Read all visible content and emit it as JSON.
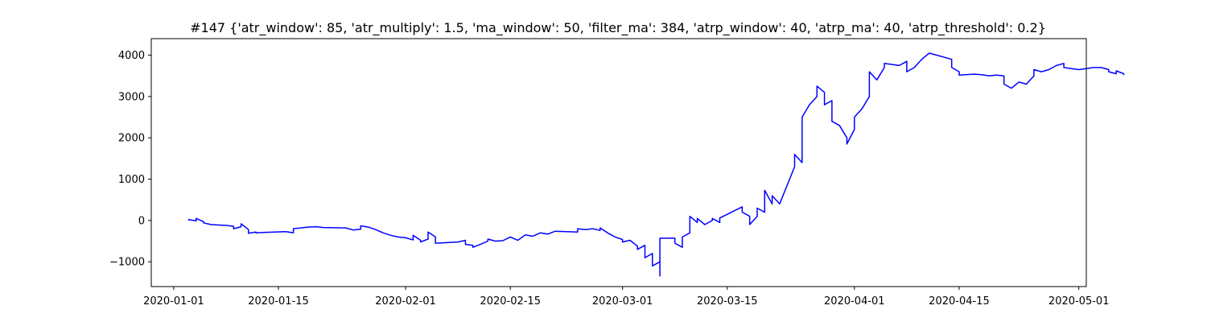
{
  "chart_data": {
    "type": "line",
    "title": "#147 {'atr_window': 85, 'atr_multiply': 1.5, 'ma_window': 50, 'filter_ma': 384, 'atrp_window': 40, 'atrp_ma': 40, 'atrp_threshold': 0.2}",
    "xlabel": "",
    "ylabel": "",
    "xlim": [
      "2019-12-29",
      "2020-05-02"
    ],
    "ylim": [
      -1600,
      4400
    ],
    "grid": false,
    "line_color": "#0000ff",
    "x_ticks": [
      "2020-01-01",
      "2020-01-15",
      "2020-02-01",
      "2020-02-15",
      "2020-03-01",
      "2020-03-15",
      "2020-04-01",
      "2020-04-15",
      "2020-05-01"
    ],
    "y_ticks": [
      -1000,
      0,
      1000,
      2000,
      3000,
      4000
    ],
    "series": [
      {
        "points": [
          [
            "2020-01-03",
            0
          ],
          [
            "2020-01-03",
            20
          ],
          [
            "2020-01-04",
            -10
          ],
          [
            "2020-01-04",
            50
          ],
          [
            "2020-01-05",
            -30
          ],
          [
            "2020-01-05",
            -60
          ],
          [
            "2020-01-06",
            -100
          ],
          [
            "2020-01-08",
            -120
          ],
          [
            "2020-01-09",
            -140
          ],
          [
            "2020-01-09",
            -200
          ],
          [
            "2020-01-10",
            -150
          ],
          [
            "2020-01-10",
            -80
          ],
          [
            "2020-01-11",
            -220
          ],
          [
            "2020-01-11",
            -310
          ],
          [
            "2020-01-12",
            -280
          ],
          [
            "2020-01-12",
            -300
          ],
          [
            "2020-01-13",
            -290
          ],
          [
            "2020-01-16",
            -270
          ],
          [
            "2020-01-17",
            -300
          ],
          [
            "2020-01-17",
            -200
          ],
          [
            "2020-01-18",
            -180
          ],
          [
            "2020-01-19",
            -160
          ],
          [
            "2020-01-20",
            -150
          ],
          [
            "2020-01-21",
            -170
          ],
          [
            "2020-01-24",
            -180
          ],
          [
            "2020-01-25",
            -230
          ],
          [
            "2020-01-26",
            -210
          ],
          [
            "2020-01-26",
            -130
          ],
          [
            "2020-01-27",
            -160
          ],
          [
            "2020-01-28",
            -220
          ],
          [
            "2020-01-29",
            -300
          ],
          [
            "2020-01-30",
            -360
          ],
          [
            "2020-01-31",
            -400
          ],
          [
            "2020-02-01",
            -420
          ],
          [
            "2020-02-02",
            -470
          ],
          [
            "2020-02-02",
            -360
          ],
          [
            "2020-02-03",
            -480
          ],
          [
            "2020-02-03",
            -520
          ],
          [
            "2020-02-04",
            -450
          ],
          [
            "2020-02-04",
            -280
          ],
          [
            "2020-02-05",
            -400
          ],
          [
            "2020-02-05",
            -550
          ],
          [
            "2020-02-08",
            -520
          ],
          [
            "2020-02-09",
            -480
          ],
          [
            "2020-02-09",
            -580
          ],
          [
            "2020-02-10",
            -600
          ],
          [
            "2020-02-10",
            -650
          ],
          [
            "2020-02-11",
            -580
          ],
          [
            "2020-02-12",
            -500
          ],
          [
            "2020-02-12",
            -450
          ],
          [
            "2020-02-13",
            -500
          ],
          [
            "2020-02-14",
            -490
          ],
          [
            "2020-02-15",
            -400
          ],
          [
            "2020-02-16",
            -480
          ],
          [
            "2020-02-17",
            -350
          ],
          [
            "2020-02-18",
            -380
          ],
          [
            "2020-02-19",
            -300
          ],
          [
            "2020-02-20",
            -330
          ],
          [
            "2020-02-21",
            -260
          ],
          [
            "2020-02-24",
            -280
          ],
          [
            "2020-02-24",
            -200
          ],
          [
            "2020-02-25",
            -220
          ],
          [
            "2020-02-26",
            -200
          ],
          [
            "2020-02-27",
            -240
          ],
          [
            "2020-02-27",
            -180
          ],
          [
            "2020-02-28",
            -300
          ],
          [
            "2020-02-29",
            -400
          ],
          [
            "2020-03-01",
            -460
          ],
          [
            "2020-03-01",
            -520
          ],
          [
            "2020-03-02",
            -480
          ],
          [
            "2020-03-03",
            -620
          ],
          [
            "2020-03-03",
            -700
          ],
          [
            "2020-03-04",
            -600
          ],
          [
            "2020-03-04",
            -900
          ],
          [
            "2020-03-05",
            -800
          ],
          [
            "2020-03-05",
            -1100
          ],
          [
            "2020-03-06",
            -1000
          ],
          [
            "2020-03-06",
            -1340
          ],
          [
            "2020-03-06",
            -430
          ],
          [
            "2020-03-08",
            -430
          ],
          [
            "2020-03-08",
            -550
          ],
          [
            "2020-03-09",
            -650
          ],
          [
            "2020-03-09",
            -400
          ],
          [
            "2020-03-10",
            -300
          ],
          [
            "2020-03-10",
            100
          ],
          [
            "2020-03-11",
            -50
          ],
          [
            "2020-03-11",
            50
          ],
          [
            "2020-03-12",
            -100
          ],
          [
            "2020-03-13",
            0
          ],
          [
            "2020-03-13",
            50
          ],
          [
            "2020-03-14",
            -50
          ],
          [
            "2020-03-14",
            60
          ],
          [
            "2020-03-17",
            330
          ],
          [
            "2020-03-17",
            200
          ],
          [
            "2020-03-18",
            100
          ],
          [
            "2020-03-18",
            -100
          ],
          [
            "2020-03-19",
            100
          ],
          [
            "2020-03-19",
            300
          ],
          [
            "2020-03-20",
            200
          ],
          [
            "2020-03-20",
            730
          ],
          [
            "2020-03-21",
            400
          ],
          [
            "2020-03-21",
            600
          ],
          [
            "2020-03-22",
            400
          ],
          [
            "2020-03-24",
            1300
          ],
          [
            "2020-03-24",
            1600
          ],
          [
            "2020-03-25",
            1400
          ],
          [
            "2020-03-25",
            2500
          ],
          [
            "2020-03-26",
            2800
          ],
          [
            "2020-03-27",
            3000
          ],
          [
            "2020-03-27",
            3250
          ],
          [
            "2020-03-28",
            3100
          ],
          [
            "2020-03-28",
            2800
          ],
          [
            "2020-03-29",
            2900
          ],
          [
            "2020-03-29",
            2400
          ],
          [
            "2020-03-30",
            2300
          ],
          [
            "2020-03-31",
            2000
          ],
          [
            "2020-03-31",
            1850
          ],
          [
            "2020-04-01",
            2200
          ],
          [
            "2020-04-01",
            2500
          ],
          [
            "2020-04-02",
            2700
          ],
          [
            "2020-04-03",
            3000
          ],
          [
            "2020-04-03",
            3600
          ],
          [
            "2020-04-04",
            3400
          ],
          [
            "2020-04-05",
            3700
          ],
          [
            "2020-04-05",
            3800
          ],
          [
            "2020-04-07",
            3750
          ],
          [
            "2020-04-08",
            3850
          ],
          [
            "2020-04-08",
            3600
          ],
          [
            "2020-04-09",
            3700
          ],
          [
            "2020-04-10",
            3900
          ],
          [
            "2020-04-11",
            4050
          ],
          [
            "2020-04-12",
            4000
          ],
          [
            "2020-04-14",
            3900
          ],
          [
            "2020-04-14",
            3700
          ],
          [
            "2020-04-15",
            3600
          ],
          [
            "2020-04-15",
            3520
          ],
          [
            "2020-04-17",
            3540
          ],
          [
            "2020-04-18",
            3530
          ],
          [
            "2020-04-19",
            3500
          ],
          [
            "2020-04-20",
            3520
          ],
          [
            "2020-04-21",
            3500
          ],
          [
            "2020-04-21",
            3300
          ],
          [
            "2020-04-22",
            3200
          ],
          [
            "2020-04-23",
            3350
          ],
          [
            "2020-04-24",
            3300
          ],
          [
            "2020-04-25",
            3500
          ],
          [
            "2020-04-25",
            3650
          ],
          [
            "2020-04-26",
            3600
          ],
          [
            "2020-04-27",
            3650
          ],
          [
            "2020-04-28",
            3750
          ],
          [
            "2020-04-29",
            3800
          ],
          [
            "2020-04-29",
            3700
          ],
          [
            "2020-05-01",
            3650
          ],
          [
            "2020-05-03",
            3700
          ],
          [
            "2020-05-04",
            3700
          ],
          [
            "2020-05-05",
            3650
          ],
          [
            "2020-05-05",
            3600
          ],
          [
            "2020-05-06",
            3550
          ],
          [
            "2020-05-06",
            3620
          ],
          [
            "2020-05-07",
            3550
          ],
          [
            "2020-05-07",
            3520
          ]
        ]
      }
    ]
  }
}
